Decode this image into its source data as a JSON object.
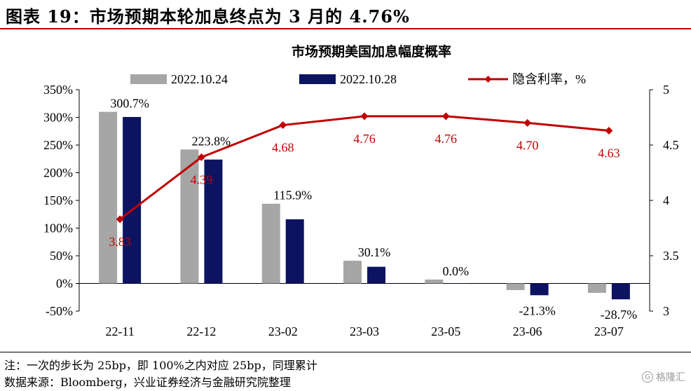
{
  "figure_title": "图表 19：市场预期本轮加息终点为 3 月的 4.76%",
  "footer": {
    "note": "注：一次的步长为 25bp，即 100%之内对应 25bp，同理累计",
    "source": "数据来源：Bloomberg，兴业证券经济与金融研究院整理"
  },
  "watermark": {
    "logo": "G",
    "text": "格隆汇"
  },
  "colors": {
    "series1": "#a6a6a6",
    "series2": "#0c1461",
    "line": "#c00000",
    "title_rule": "#c00000"
  },
  "chart_data": {
    "type": "bar",
    "title": "市场预期美国加息幅度概率",
    "categories": [
      "22-11",
      "22-12",
      "23-02",
      "23-03",
      "23-05",
      "23-06",
      "23-07"
    ],
    "series": [
      {
        "name": "2022.10.24",
        "type": "bar",
        "axis": "left",
        "values": [
          310,
          242,
          144,
          41,
          7,
          -12,
          -17
        ]
      },
      {
        "name": "2022.10.28",
        "type": "bar",
        "axis": "left",
        "values": [
          300.7,
          223.8,
          115.9,
          30.1,
          0.0,
          -21.3,
          -28.7
        ]
      },
      {
        "name": "隐含利率，%",
        "type": "line",
        "axis": "right",
        "values": [
          3.83,
          4.39,
          4.68,
          4.76,
          4.76,
          4.7,
          4.63
        ]
      }
    ],
    "bar_labels": [
      "300.7%",
      "223.8%",
      "115.9%",
      "30.1%",
      "0.0%",
      "-21.3%",
      "-28.7%"
    ],
    "line_labels": [
      "3.83",
      "4.39",
      "4.68",
      "4.76",
      "4.76",
      "4.70",
      "4.63"
    ],
    "left_axis": {
      "range": [
        -50,
        350
      ],
      "ticks": [
        "350%",
        "300%",
        "250%",
        "200%",
        "150%",
        "100%",
        "50%",
        "0%",
        "-50%"
      ]
    },
    "right_axis": {
      "range": [
        3,
        5
      ],
      "ticks": [
        "5",
        "4.5",
        "4",
        "3.5",
        "3"
      ]
    },
    "legend_position": "top",
    "grid": false
  }
}
